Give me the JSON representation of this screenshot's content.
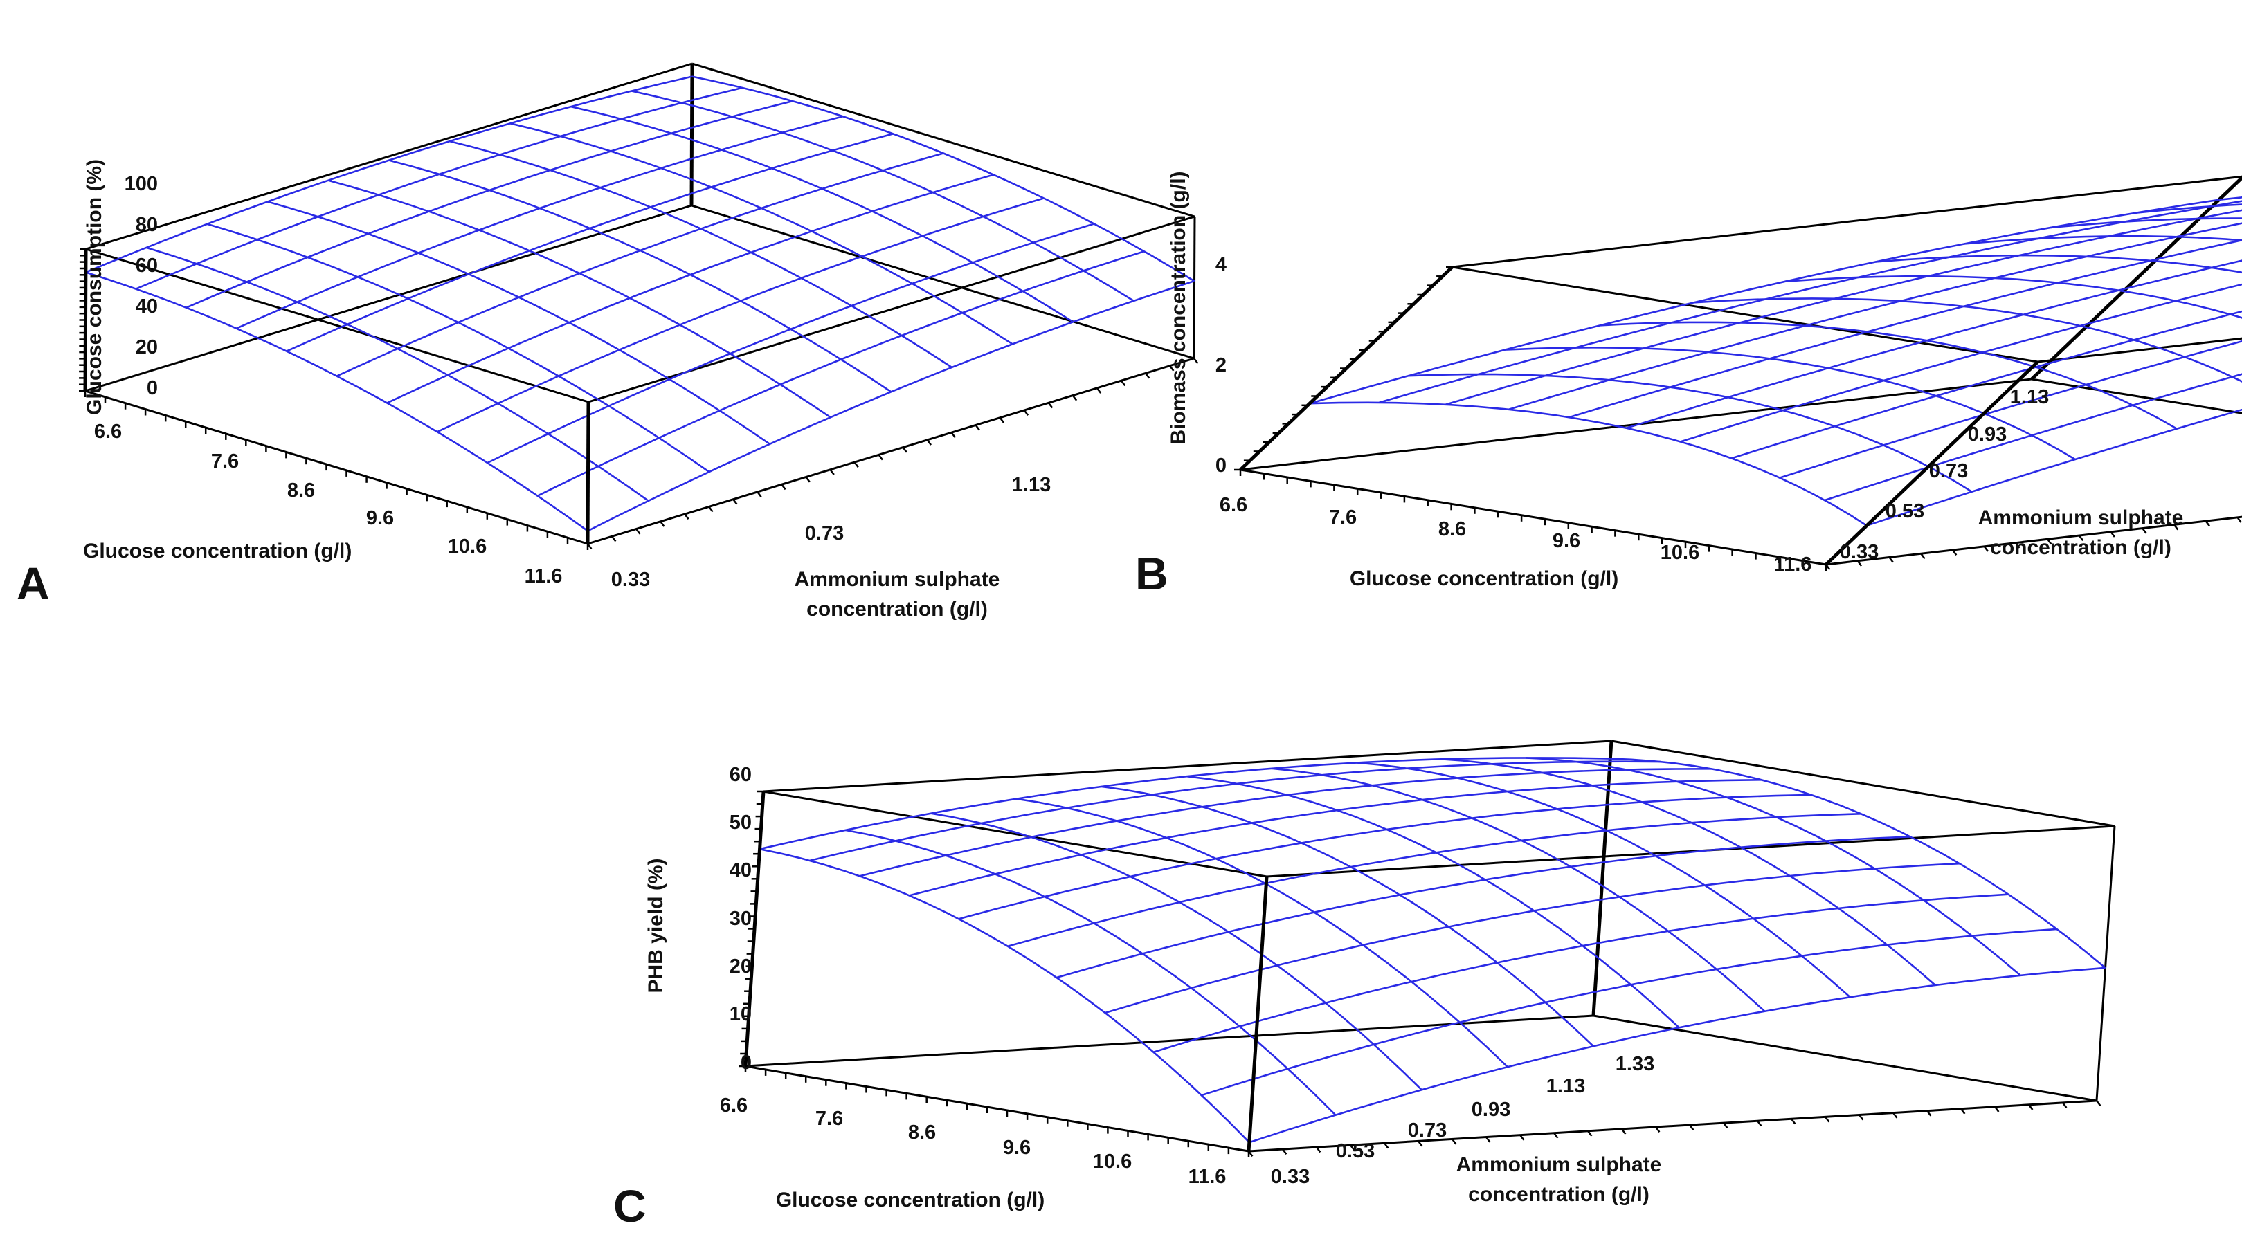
{
  "colors": {
    "surface": "#2a2ae6",
    "axes": "#000000",
    "background": "#ffffff"
  },
  "chart_data": [
    {
      "panel": "A",
      "type": "surface3d",
      "xlabel": "Glucose concentration (g/l)",
      "ylabel_lines": [
        "Ammonium sulphate",
        "concentration (g/l)"
      ],
      "zlabel": "Glucose consumption (%)",
      "x_ticks": [
        "6.6",
        "7.6",
        "8.6",
        "9.6",
        "10.6",
        "11.6"
      ],
      "y_ticks": [
        "0.33",
        "0.73",
        "1.13"
      ],
      "z_ticks": [
        "0",
        "20",
        "40",
        "60",
        "80",
        "100"
      ],
      "xlim": [
        6.6,
        11.6
      ],
      "ylim": [
        0.33,
        1.33
      ],
      "zlim": [
        0,
        110
      ],
      "corner_z": {
        "x_low_y_low": 92,
        "x_low_y_high": 100,
        "x_high_y_low": 10,
        "x_high_y_high": 60
      }
    },
    {
      "panel": "B",
      "type": "surface3d",
      "xlabel": "Glucose concentration (g/l)",
      "ylabel_lines": [
        "Ammonium sulphate",
        "concentration (g/l)"
      ],
      "zlabel": "Biomass concentration (g/l)",
      "x_ticks": [
        "6.6",
        "7.6",
        "8.6",
        "9.6",
        "10.6",
        "11.6"
      ],
      "y_ticks": [
        "0.33",
        "0.53",
        "0.73",
        "0.93",
        "1.13"
      ],
      "z_ticks": [
        "0",
        "2",
        "4"
      ],
      "xlim": [
        6.6,
        11.6
      ],
      "ylim": [
        0.33,
        1.23
      ],
      "zlim": [
        0,
        5.2
      ],
      "corner_z": {
        "x_low_y_low": 1.7,
        "x_low_y_high": 4.6,
        "x_high_y_low": 1.0,
        "x_high_y_high": 5.5
      }
    },
    {
      "panel": "C",
      "type": "surface3d",
      "xlabel": "Glucose concentration (g/l)",
      "ylabel_lines": [
        "Ammonium sulphate",
        "concentration (g/l)"
      ],
      "zlabel": "PHB yield (%)",
      "x_ticks": [
        "6.6",
        "7.6",
        "8.6",
        "9.6",
        "10.6",
        "11.6"
      ],
      "y_ticks": [
        "0.33",
        "0.53",
        "0.73",
        "0.93",
        "1.13",
        "1.33"
      ],
      "z_ticks": [
        "0",
        "10",
        "20",
        "30",
        "40",
        "50",
        "60"
      ],
      "xlim": [
        6.6,
        11.6
      ],
      "ylim": [
        0.33,
        1.33
      ],
      "zlim": [
        0,
        62
      ],
      "corner_z": {
        "x_low_y_low": 49,
        "x_low_y_high": 58,
        "x_high_y_low": 2,
        "x_high_y_high": 30
      }
    }
  ]
}
